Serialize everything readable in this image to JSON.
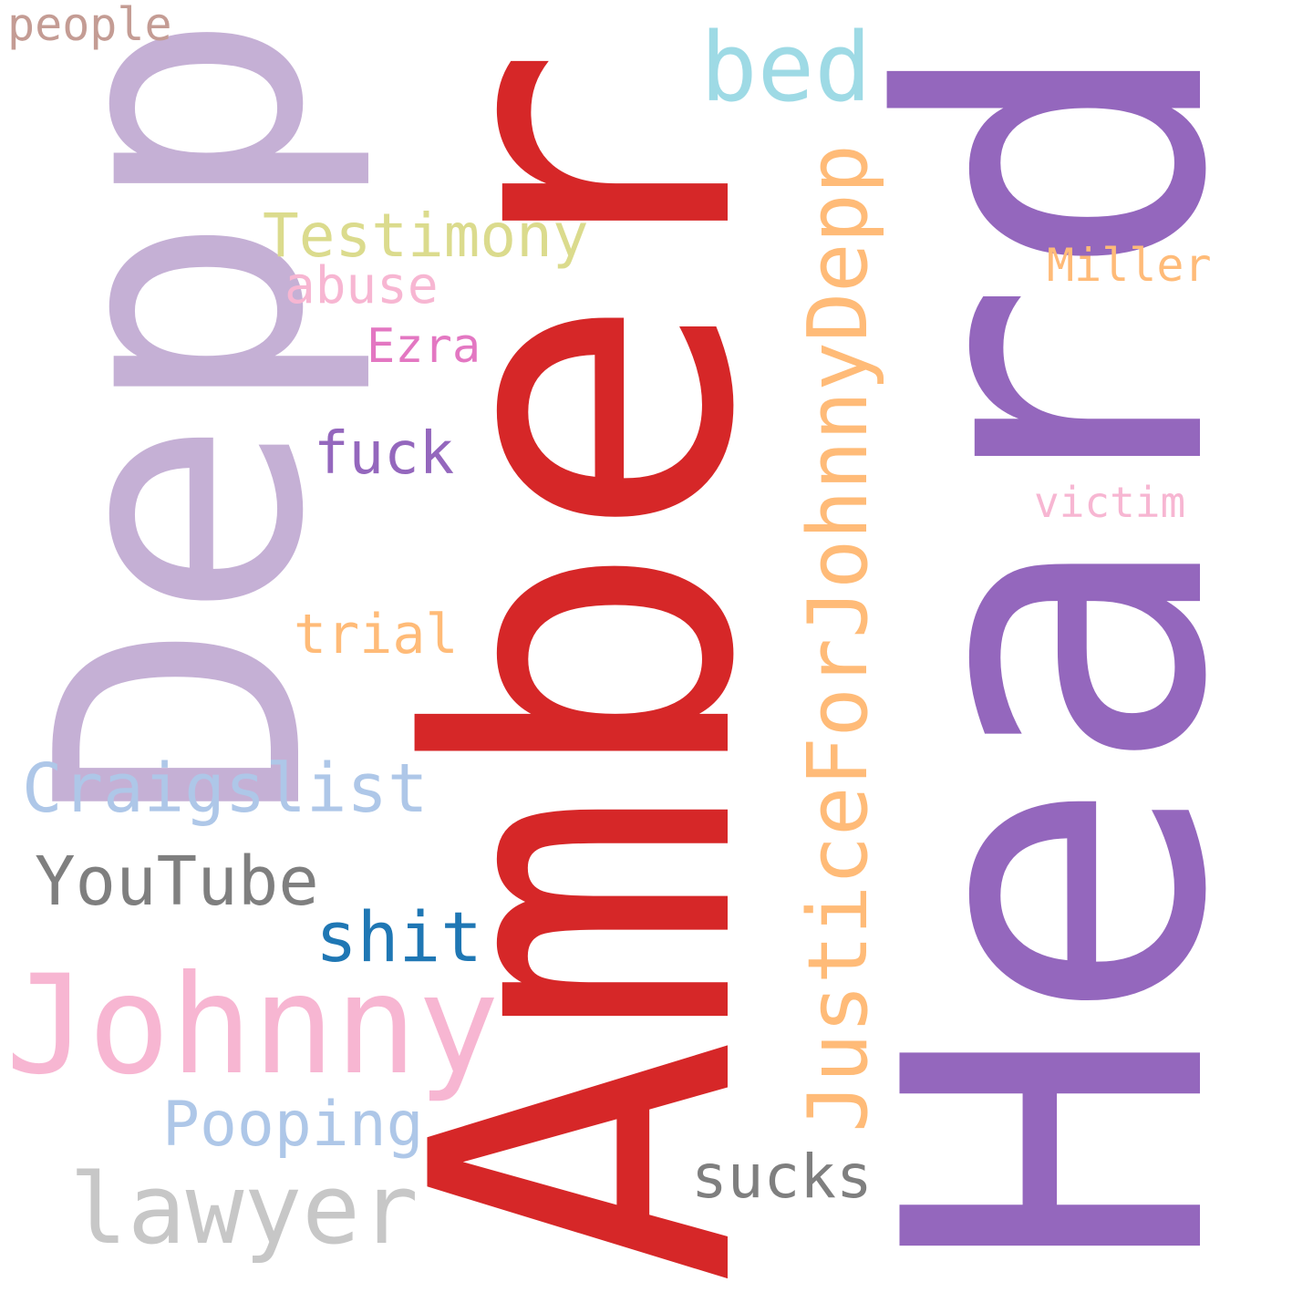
{
  "words": {
    "amber": {
      "text": "Amber",
      "color": "#d62728",
      "orientation": "vertical"
    },
    "heard": {
      "text": "Heard",
      "color": "#9467bd",
      "orientation": "vertical"
    },
    "depp": {
      "text": "Depp",
      "color": "#c5b0d5",
      "orientation": "vertical"
    },
    "justice": {
      "text": "JusticeForJohnnyDepp",
      "color": "#ffbb78",
      "orientation": "vertical"
    },
    "johnny": {
      "text": "Johnny",
      "color": "#f7b6d2",
      "orientation": "horizontal"
    },
    "lawyer": {
      "text": "lawyer",
      "color": "#c7c7c7",
      "orientation": "horizontal"
    },
    "bed": {
      "text": "bed",
      "color": "#9edae5",
      "orientation": "horizontal"
    },
    "craigslist": {
      "text": "Craigslist",
      "color": "#aec7e8",
      "orientation": "horizontal"
    },
    "youtube": {
      "text": "YouTube",
      "color": "#7f7f7f",
      "orientation": "horizontal"
    },
    "shit": {
      "text": "shit",
      "color": "#1f77b4",
      "orientation": "horizontal"
    },
    "testimony": {
      "text": "Testimony",
      "color": "#dbdb8d",
      "orientation": "horizontal"
    },
    "pooping": {
      "text": "Pooping",
      "color": "#aec7e8",
      "orientation": "horizontal"
    },
    "sucks": {
      "text": "sucks",
      "color": "#7f7f7f",
      "orientation": "horizontal"
    },
    "fuck": {
      "text": "fuck",
      "color": "#9467bd",
      "orientation": "horizontal"
    },
    "trial": {
      "text": "trial",
      "color": "#ffbb78",
      "orientation": "horizontal"
    },
    "abuse": {
      "text": "abuse",
      "color": "#f7b6d2",
      "orientation": "horizontal"
    },
    "ezra": {
      "text": "Ezra",
      "color": "#e377c2",
      "orientation": "horizontal"
    },
    "people": {
      "text": "people",
      "color": "#c49c94",
      "orientation": "horizontal"
    },
    "miller": {
      "text": "Miller",
      "color": "#ffbb78",
      "orientation": "horizontal"
    },
    "victim": {
      "text": "victim",
      "color": "#f7b6d2",
      "orientation": "horizontal"
    }
  }
}
